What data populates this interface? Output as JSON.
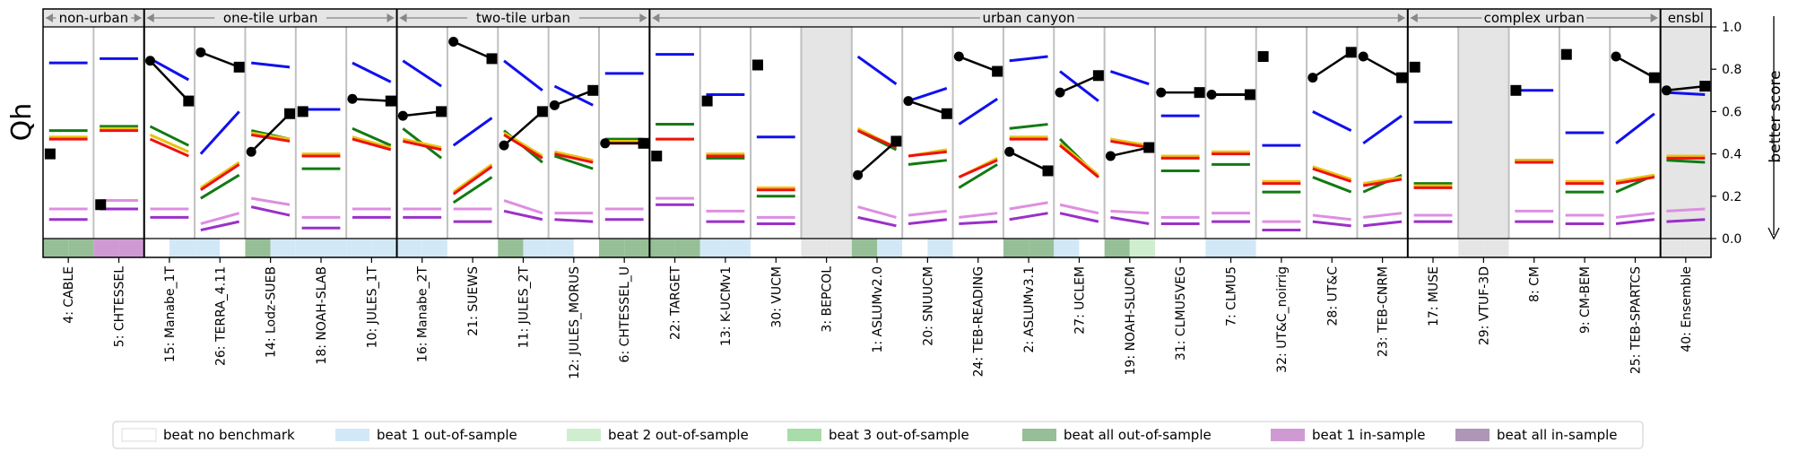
{
  "chart_data": {
    "type": "line",
    "ylabel": "Qh",
    "right_label": "better score",
    "ylim": [
      0,
      1
    ],
    "yticks": [
      "0.0",
      "0.2",
      "0.4",
      "0.6",
      "0.8",
      "1.0"
    ],
    "groups": [
      {
        "label": "non-urban",
        "start": 0,
        "end": 1
      },
      {
        "label": "one-tile urban",
        "start": 2,
        "end": 6
      },
      {
        "label": "two-tile urban",
        "start": 7,
        "end": 11
      },
      {
        "label": "urban canyon",
        "start": 12,
        "end": 26
      },
      {
        "label": "complex urban",
        "start": 27,
        "end": 31
      },
      {
        "label": "ensbl",
        "start": 32,
        "end": 32
      }
    ],
    "models": [
      {
        "label": "4: CABLE",
        "shaded": false,
        "blue": [
          0.83,
          0.83
        ],
        "green": [
          0.51,
          0.51
        ],
        "yellow": [
          0.48,
          0.48
        ],
        "red": [
          0.47,
          0.47
        ],
        "pink": [
          0.14,
          0.14
        ],
        "purple": [
          0.09,
          0.09
        ],
        "black": [
          null,
          0.4
        ]
      },
      {
        "label": "5: CHTESSEL",
        "shaded": false,
        "blue": [
          0.85,
          0.85
        ],
        "green": [
          0.53,
          0.53
        ],
        "yellow": [
          0.52,
          0.52
        ],
        "red": [
          0.51,
          0.51
        ],
        "pink": [
          0.18,
          0.18
        ],
        "purple": [
          0.14,
          0.14
        ],
        "black": [
          null,
          0.16
        ]
      },
      {
        "label": "15: Manabe_1T",
        "shaded": false,
        "blue": [
          0.85,
          0.75
        ],
        "green": [
          0.53,
          0.44
        ],
        "yellow": [
          0.49,
          0.41
        ],
        "red": [
          0.47,
          0.39
        ],
        "pink": [
          0.14,
          0.14
        ],
        "purple": [
          0.1,
          0.1
        ],
        "black": [
          0.84,
          0.65
        ]
      },
      {
        "label": "26: TERRA_4.11",
        "shaded": false,
        "blue": [
          0.4,
          0.6
        ],
        "green": [
          0.19,
          0.3
        ],
        "yellow": [
          0.24,
          0.36
        ],
        "red": [
          0.23,
          0.35
        ],
        "pink": [
          0.07,
          0.12
        ],
        "purple": [
          0.04,
          0.08
        ],
        "black": [
          0.88,
          0.81
        ]
      },
      {
        "label": "14: Lodz-SUEB",
        "shaded": false,
        "blue": [
          0.83,
          0.81
        ],
        "green": [
          0.51,
          0.47
        ],
        "yellow": [
          0.5,
          0.47
        ],
        "red": [
          0.49,
          0.46
        ],
        "pink": [
          0.19,
          0.16
        ],
        "purple": [
          0.15,
          0.11
        ],
        "black": [
          0.41,
          0.59
        ]
      },
      {
        "label": "18: NOAH-SLAB",
        "shaded": false,
        "blue": [
          0.61,
          0.61
        ],
        "green": [
          0.33,
          0.33
        ],
        "yellow": [
          0.4,
          0.4
        ],
        "red": [
          0.39,
          0.39
        ],
        "pink": [
          0.1,
          0.1
        ],
        "purple": [
          0.05,
          0.05
        ],
        "black": [
          null,
          0.6
        ]
      },
      {
        "label": "10: JULES_1T",
        "shaded": false,
        "blue": [
          0.83,
          0.74
        ],
        "green": [
          0.52,
          0.44
        ],
        "yellow": [
          0.48,
          0.43
        ],
        "red": [
          0.47,
          0.42
        ],
        "pink": [
          0.14,
          0.14
        ],
        "purple": [
          0.1,
          0.1
        ],
        "black": [
          0.66,
          0.65
        ]
      },
      {
        "label": "16: Manabe_2T",
        "shaded": false,
        "blue": [
          0.84,
          0.72
        ],
        "green": [
          0.52,
          0.38
        ],
        "yellow": [
          0.47,
          0.43
        ],
        "red": [
          0.46,
          0.42
        ],
        "pink": [
          0.14,
          0.14
        ],
        "purple": [
          0.1,
          0.1
        ],
        "black": [
          0.58,
          0.6
        ]
      },
      {
        "label": "21: SUEWS",
        "shaded": false,
        "blue": [
          0.44,
          0.57
        ],
        "green": [
          0.17,
          0.29
        ],
        "yellow": [
          0.22,
          0.35
        ],
        "red": [
          0.21,
          0.34
        ],
        "pink": [
          0.14,
          0.14
        ],
        "purple": [
          0.08,
          0.08
        ],
        "black": [
          0.93,
          0.85
        ]
      },
      {
        "label": "11: JULES_2T",
        "shaded": false,
        "blue": [
          0.84,
          0.7
        ],
        "green": [
          0.51,
          0.36
        ],
        "yellow": [
          0.5,
          0.39
        ],
        "red": [
          0.49,
          0.38
        ],
        "pink": [
          0.18,
          0.12
        ],
        "purple": [
          0.13,
          0.09
        ],
        "black": [
          0.44,
          0.6
        ]
      },
      {
        "label": "12: JULES_MORUS",
        "shaded": false,
        "blue": [
          0.72,
          0.63
        ],
        "green": [
          0.39,
          0.33
        ],
        "yellow": [
          0.41,
          0.37
        ],
        "red": [
          0.4,
          0.36
        ],
        "pink": [
          0.12,
          0.12
        ],
        "purple": [
          0.09,
          0.08
        ],
        "black": [
          0.63,
          0.7
        ]
      },
      {
        "label": "6: CHTESSEL_U",
        "shaded": false,
        "blue": [
          0.78,
          0.78
        ],
        "green": [
          0.47,
          0.47
        ],
        "yellow": [
          0.46,
          0.46
        ],
        "red": [
          0.45,
          0.45
        ],
        "pink": [
          0.14,
          0.14
        ],
        "purple": [
          0.09,
          0.09
        ],
        "black": [
          0.45,
          0.45
        ]
      },
      {
        "label": "22: TARGET",
        "shaded": false,
        "blue": [
          0.87,
          0.87
        ],
        "green": [
          0.54,
          0.54
        ],
        "yellow": [
          0.47,
          0.47
        ],
        "red": [
          0.47,
          0.47
        ],
        "pink": [
          0.19,
          0.19
        ],
        "purple": [
          0.16,
          0.16
        ],
        "black": [
          null,
          0.39
        ]
      },
      {
        "label": "13: K-UCMv1",
        "shaded": false,
        "blue": [
          0.68,
          0.68
        ],
        "green": [
          0.38,
          0.38
        ],
        "yellow": [
          0.4,
          0.4
        ],
        "red": [
          0.39,
          0.39
        ],
        "pink": [
          0.13,
          0.13
        ],
        "purple": [
          0.08,
          0.08
        ],
        "black": [
          null,
          0.65
        ]
      },
      {
        "label": "30: VUCM",
        "shaded": false,
        "blue": [
          0.48,
          0.48
        ],
        "green": [
          0.2,
          0.2
        ],
        "yellow": [
          0.24,
          0.24
        ],
        "red": [
          0.23,
          0.23
        ],
        "pink": [
          0.1,
          0.1
        ],
        "purple": [
          0.07,
          0.07
        ],
        "black": [
          null,
          0.82
        ]
      },
      {
        "label": "3: BEPCOL",
        "shaded": true,
        "blue": [
          null,
          null
        ],
        "green": [
          null,
          null
        ],
        "yellow": [
          null,
          null
        ],
        "red": [
          null,
          null
        ],
        "pink": [
          null,
          null
        ],
        "purple": [
          null,
          null
        ],
        "black": [
          null,
          null
        ]
      },
      {
        "label": "1: ASLUMv2.0",
        "shaded": false,
        "blue": [
          0.86,
          0.73
        ],
        "green": [
          0.51,
          0.42
        ],
        "yellow": [
          0.52,
          0.43
        ],
        "red": [
          0.51,
          0.43
        ],
        "pink": [
          0.15,
          0.1
        ],
        "purple": [
          0.1,
          0.06
        ],
        "black": [
          0.3,
          0.46
        ]
      },
      {
        "label": "20: SNUUCM",
        "shaded": false,
        "blue": [
          0.65,
          0.71
        ],
        "green": [
          0.35,
          0.37
        ],
        "yellow": [
          0.39,
          0.42
        ],
        "red": [
          0.39,
          0.41
        ],
        "pink": [
          0.11,
          0.13
        ],
        "purple": [
          0.07,
          0.09
        ],
        "black": [
          0.65,
          0.59
        ]
      },
      {
        "label": "24: TEB-READING",
        "shaded": false,
        "blue": [
          0.54,
          0.66
        ],
        "green": [
          0.24,
          0.35
        ],
        "yellow": [
          0.29,
          0.38
        ],
        "red": [
          0.29,
          0.37
        ],
        "pink": [
          0.1,
          0.12
        ],
        "purple": [
          0.07,
          0.08
        ],
        "black": [
          0.86,
          0.79
        ]
      },
      {
        "label": "2: ASLUMv3.1",
        "shaded": false,
        "blue": [
          0.84,
          0.86
        ],
        "green": [
          0.52,
          0.54
        ],
        "yellow": [
          0.48,
          0.48
        ],
        "red": [
          0.47,
          0.47
        ],
        "pink": [
          0.14,
          0.17
        ],
        "purple": [
          0.09,
          0.12
        ],
        "black": [
          0.41,
          0.32
        ]
      },
      {
        "label": "27: UCLEM",
        "shaded": false,
        "blue": [
          0.79,
          0.65
        ],
        "green": [
          0.47,
          0.29
        ],
        "yellow": [
          0.45,
          0.3
        ],
        "red": [
          0.44,
          0.29
        ],
        "pink": [
          0.16,
          0.12
        ],
        "purple": [
          0.12,
          0.08
        ],
        "black": [
          0.69,
          0.77
        ]
      },
      {
        "label": "19: NOAH-SLUCM",
        "shaded": false,
        "blue": [
          0.79,
          0.73
        ],
        "green": [
          0.47,
          0.43
        ],
        "yellow": [
          0.47,
          0.44
        ],
        "red": [
          0.46,
          0.43
        ],
        "pink": [
          0.13,
          0.12
        ],
        "purple": [
          0.1,
          0.07
        ],
        "black": [
          0.39,
          0.43
        ]
      },
      {
        "label": "31: CLMU5VEG",
        "shaded": false,
        "blue": [
          0.58,
          0.58
        ],
        "green": [
          0.32,
          0.32
        ],
        "yellow": [
          0.39,
          0.39
        ],
        "red": [
          0.38,
          0.38
        ],
        "pink": [
          0.1,
          0.1
        ],
        "purple": [
          0.07,
          0.07
        ],
        "black": [
          0.69,
          0.69
        ]
      },
      {
        "label": "7: CLMU5",
        "shaded": false,
        "blue": [
          0.68,
          0.68
        ],
        "green": [
          0.35,
          0.35
        ],
        "yellow": [
          0.41,
          0.41
        ],
        "red": [
          0.4,
          0.4
        ],
        "pink": [
          0.12,
          0.12
        ],
        "purple": [
          0.08,
          0.08
        ],
        "black": [
          0.68,
          0.68
        ]
      },
      {
        "label": "32: UT&C_noirrig",
        "shaded": false,
        "blue": [
          0.44,
          0.44
        ],
        "green": [
          0.22,
          0.22
        ],
        "yellow": [
          0.27,
          0.27
        ],
        "red": [
          0.26,
          0.26
        ],
        "pink": [
          0.08,
          0.08
        ],
        "purple": [
          0.04,
          0.04
        ],
        "black": [
          null,
          0.86
        ]
      },
      {
        "label": "28: UT&C",
        "shaded": false,
        "blue": [
          0.6,
          0.51
        ],
        "green": [
          0.29,
          0.22
        ],
        "yellow": [
          0.34,
          0.28
        ],
        "red": [
          0.33,
          0.27
        ],
        "pink": [
          0.11,
          0.09
        ],
        "purple": [
          0.08,
          0.06
        ],
        "black": [
          0.76,
          0.88
        ]
      },
      {
        "label": "23: TEB-CNRM",
        "shaded": false,
        "blue": [
          0.45,
          0.58
        ],
        "green": [
          0.22,
          0.3
        ],
        "yellow": [
          0.26,
          0.29
        ],
        "red": [
          0.25,
          0.28
        ],
        "pink": [
          0.1,
          0.12
        ],
        "purple": [
          0.06,
          0.08
        ],
        "black": [
          0.86,
          0.76
        ]
      },
      {
        "label": "17: MUSE",
        "shaded": false,
        "blue": [
          0.55,
          0.55
        ],
        "green": [
          0.26,
          0.26
        ],
        "yellow": [
          0.25,
          0.25
        ],
        "red": [
          0.24,
          0.24
        ],
        "pink": [
          0.11,
          0.11
        ],
        "purple": [
          0.08,
          0.08
        ],
        "black": [
          null,
          0.81
        ]
      },
      {
        "label": "29: VTUF-3D",
        "shaded": true,
        "blue": [
          null,
          null
        ],
        "green": [
          null,
          null
        ],
        "yellow": [
          null,
          null
        ],
        "red": [
          null,
          null
        ],
        "pink": [
          null,
          null
        ],
        "purple": [
          null,
          null
        ],
        "black": [
          null,
          null
        ]
      },
      {
        "label": "8: CM",
        "shaded": false,
        "blue": [
          0.7,
          0.7
        ],
        "green": [
          0.37,
          0.37
        ],
        "yellow": [
          0.37,
          0.37
        ],
        "red": [
          0.36,
          0.36
        ],
        "pink": [
          0.13,
          0.13
        ],
        "purple": [
          0.08,
          0.08
        ],
        "black": [
          null,
          0.7
        ]
      },
      {
        "label": "9: CM-BEM",
        "shaded": false,
        "blue": [
          0.5,
          0.5
        ],
        "green": [
          0.22,
          0.22
        ],
        "yellow": [
          0.27,
          0.27
        ],
        "red": [
          0.26,
          0.26
        ],
        "pink": [
          0.11,
          0.11
        ],
        "purple": [
          0.07,
          0.07
        ],
        "black": [
          null,
          0.87
        ]
      },
      {
        "label": "25: TEB-SPARTCS",
        "shaded": false,
        "blue": [
          0.45,
          0.59
        ],
        "green": [
          0.22,
          0.3
        ],
        "yellow": [
          0.27,
          0.3
        ],
        "red": [
          0.26,
          0.29
        ],
        "pink": [
          0.1,
          0.12
        ],
        "purple": [
          0.07,
          0.09
        ],
        "black": [
          0.86,
          0.76
        ]
      },
      {
        "label": "40: Ensemble",
        "shaded": true,
        "blue": [
          0.69,
          0.68
        ],
        "green": [
          0.37,
          0.36
        ],
        "yellow": [
          0.39,
          0.39
        ],
        "red": [
          0.38,
          0.38
        ],
        "pink": [
          0.13,
          0.14
        ],
        "purple": [
          0.08,
          0.09
        ],
        "black": [
          0.7,
          0.72
        ]
      }
    ],
    "benchmark_strip": [
      [
        "all_out",
        "all_out"
      ],
      [
        "in1",
        "in1"
      ],
      [
        "none",
        "out1"
      ],
      [
        "out1",
        "none"
      ],
      [
        "all_out",
        "out1"
      ],
      [
        "out1",
        "out1"
      ],
      [
        "out1",
        "out1"
      ],
      [
        "out1",
        "out1"
      ],
      [
        "none",
        "none"
      ],
      [
        "all_out",
        "out1"
      ],
      [
        "out1",
        "none"
      ],
      [
        "all_out",
        "all_out"
      ],
      [
        "all_out",
        "all_out"
      ],
      [
        "out1",
        "out1"
      ],
      [
        "none",
        "none"
      ],
      [
        "gray",
        "gray"
      ],
      [
        "all_out",
        "out1"
      ],
      [
        "none",
        "out1"
      ],
      [
        "none",
        "none"
      ],
      [
        "all_out",
        "all_out"
      ],
      [
        "out1",
        "none"
      ],
      [
        "all_out",
        "out2"
      ],
      [
        "none",
        "none"
      ],
      [
        "out1",
        "out1"
      ],
      [
        "none",
        "none"
      ],
      [
        "none",
        "none"
      ],
      [
        "none",
        "none"
      ],
      [
        "none",
        "none"
      ],
      [
        "gray",
        "gray"
      ],
      [
        "none",
        "none"
      ],
      [
        "none",
        "none"
      ],
      [
        "none",
        "none"
      ],
      [
        "gray",
        "gray"
      ]
    ],
    "colors": {
      "blue": "#1010ee",
      "green": "#127a12",
      "yellow": "#e8c40c",
      "red": "#ee1111",
      "pink": "#dd8fe0",
      "purple": "#9b30c8",
      "black": "#000000",
      "header": "#e5e5e5",
      "shaded": "#e5e5e5",
      "divider": "#c0c0c0"
    },
    "legend": [
      {
        "key": "none",
        "label": "beat no benchmark",
        "color": "#ffffff"
      },
      {
        "key": "out1",
        "label": "beat 1 out-of-sample",
        "color": "#d2e8f7"
      },
      {
        "key": "out2",
        "label": "beat 2 out-of-sample",
        "color": "#cfeecf"
      },
      {
        "key": "out3",
        "label": "beat 3 out-of-sample",
        "color": "#a8dca8"
      },
      {
        "key": "all_out",
        "label": "beat all out-of-sample",
        "color": "#97bf97"
      },
      {
        "key": "in1",
        "label": "beat 1 in-sample",
        "color": "#cf9ad3"
      },
      {
        "key": "all_in",
        "label": "beat all in-sample",
        "color": "#ae96b7"
      }
    ]
  }
}
